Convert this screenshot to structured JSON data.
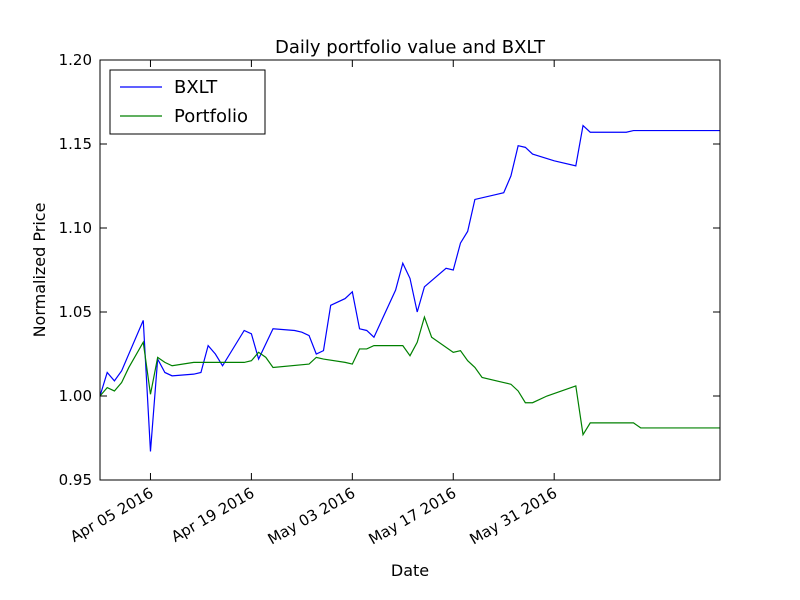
{
  "chart_data": {
    "type": "line",
    "title": "Daily portfolio value and BXLT",
    "xlabel": "Date",
    "ylabel": "Normalized Price",
    "xlim": [
      "2016-03-29",
      "2016-06-23"
    ],
    "ylim": [
      0.95,
      1.2
    ],
    "y_ticks": [
      "0.95",
      "1.00",
      "1.05",
      "1.10",
      "1.15",
      "1.20"
    ],
    "x_ticks": [
      {
        "date": "2016-04-05",
        "label": "Apr 05 2016"
      },
      {
        "date": "2016-04-19",
        "label": "Apr 19 2016"
      },
      {
        "date": "2016-05-03",
        "label": "May 03 2016"
      },
      {
        "date": "2016-05-17",
        "label": "May 17 2016"
      },
      {
        "date": "2016-05-31",
        "label": "May 31 2016"
      }
    ],
    "legend_position": "top-left",
    "grid": false,
    "series": [
      {
        "name": "BXLT",
        "color": "#0000ff",
        "points": [
          [
            "2016-03-29",
            1.0
          ],
          [
            "2016-03-30",
            1.014
          ],
          [
            "2016-03-31",
            1.009
          ],
          [
            "2016-04-01",
            1.015
          ],
          [
            "2016-04-04",
            1.045
          ],
          [
            "2016-04-05",
            0.967
          ],
          [
            "2016-04-06",
            1.022
          ],
          [
            "2016-04-07",
            1.014
          ],
          [
            "2016-04-08",
            1.012
          ],
          [
            "2016-04-11",
            1.013
          ],
          [
            "2016-04-12",
            1.014
          ],
          [
            "2016-04-13",
            1.03
          ],
          [
            "2016-04-14",
            1.025
          ],
          [
            "2016-04-15",
            1.018
          ],
          [
            "2016-04-18",
            1.039
          ],
          [
            "2016-04-19",
            1.037
          ],
          [
            "2016-04-20",
            1.022
          ],
          [
            "2016-04-21",
            1.031
          ],
          [
            "2016-04-22",
            1.04
          ],
          [
            "2016-04-25",
            1.039
          ],
          [
            "2016-04-26",
            1.038
          ],
          [
            "2016-04-27",
            1.036
          ],
          [
            "2016-04-28",
            1.025
          ],
          [
            "2016-04-29",
            1.027
          ],
          [
            "2016-04-30",
            1.054
          ],
          [
            "2016-05-02",
            1.058
          ],
          [
            "2016-05-03",
            1.062
          ],
          [
            "2016-05-04",
            1.04
          ],
          [
            "2016-05-05",
            1.039
          ],
          [
            "2016-05-06",
            1.035
          ],
          [
            "2016-05-09",
            1.063
          ],
          [
            "2016-05-10",
            1.079
          ],
          [
            "2016-05-11",
            1.07
          ],
          [
            "2016-05-12",
            1.05
          ],
          [
            "2016-05-13",
            1.065
          ],
          [
            "2016-05-16",
            1.076
          ],
          [
            "2016-05-17",
            1.075
          ],
          [
            "2016-05-18",
            1.091
          ],
          [
            "2016-05-19",
            1.098
          ],
          [
            "2016-05-20",
            1.117
          ],
          [
            "2016-05-23",
            1.12
          ],
          [
            "2016-05-24",
            1.121
          ],
          [
            "2016-05-25",
            1.131
          ],
          [
            "2016-05-26",
            1.149
          ],
          [
            "2016-05-27",
            1.148
          ],
          [
            "2016-05-28",
            1.144
          ],
          [
            "2016-05-31",
            1.14
          ],
          [
            "2016-06-03",
            1.137
          ],
          [
            "2016-06-04",
            1.161
          ],
          [
            "2016-06-05",
            1.157
          ],
          [
            "2016-06-06",
            1.157
          ],
          [
            "2016-06-10",
            1.157
          ],
          [
            "2016-06-11",
            1.158
          ],
          [
            "2016-06-23",
            1.158
          ]
        ]
      },
      {
        "name": "Portfolio",
        "color": "#008000",
        "points": [
          [
            "2016-03-29",
            1.0
          ],
          [
            "2016-03-30",
            1.005
          ],
          [
            "2016-03-31",
            1.003
          ],
          [
            "2016-04-01",
            1.008
          ],
          [
            "2016-04-02",
            1.017
          ],
          [
            "2016-04-04",
            1.032
          ],
          [
            "2016-04-05",
            1.001
          ],
          [
            "2016-04-06",
            1.023
          ],
          [
            "2016-04-07",
            1.02
          ],
          [
            "2016-04-08",
            1.018
          ],
          [
            "2016-04-11",
            1.02
          ],
          [
            "2016-04-12",
            1.02
          ],
          [
            "2016-04-14",
            1.02
          ],
          [
            "2016-04-18",
            1.02
          ],
          [
            "2016-04-19",
            1.021
          ],
          [
            "2016-04-20",
            1.026
          ],
          [
            "2016-04-21",
            1.023
          ],
          [
            "2016-04-22",
            1.017
          ],
          [
            "2016-04-27",
            1.019
          ],
          [
            "2016-04-28",
            1.023
          ],
          [
            "2016-04-29",
            1.022
          ],
          [
            "2016-05-02",
            1.02
          ],
          [
            "2016-05-03",
            1.019
          ],
          [
            "2016-05-04",
            1.028
          ],
          [
            "2016-05-05",
            1.028
          ],
          [
            "2016-05-06",
            1.03
          ],
          [
            "2016-05-10",
            1.03
          ],
          [
            "2016-05-11",
            1.024
          ],
          [
            "2016-05-12",
            1.032
          ],
          [
            "2016-05-13",
            1.047
          ],
          [
            "2016-05-14",
            1.035
          ],
          [
            "2016-05-17",
            1.026
          ],
          [
            "2016-05-18",
            1.027
          ],
          [
            "2016-05-19",
            1.021
          ],
          [
            "2016-05-20",
            1.017
          ],
          [
            "2016-05-21",
            1.011
          ],
          [
            "2016-05-24",
            1.008
          ],
          [
            "2016-05-25",
            1.007
          ],
          [
            "2016-05-26",
            1.003
          ],
          [
            "2016-05-27",
            0.996
          ],
          [
            "2016-05-28",
            0.996
          ],
          [
            "2016-05-30",
            1.0
          ],
          [
            "2016-06-03",
            1.006
          ],
          [
            "2016-06-04",
            0.977
          ],
          [
            "2016-06-05",
            0.984
          ],
          [
            "2016-06-11",
            0.984
          ],
          [
            "2016-06-12",
            0.981
          ],
          [
            "2016-06-23",
            0.981
          ]
        ]
      }
    ]
  }
}
